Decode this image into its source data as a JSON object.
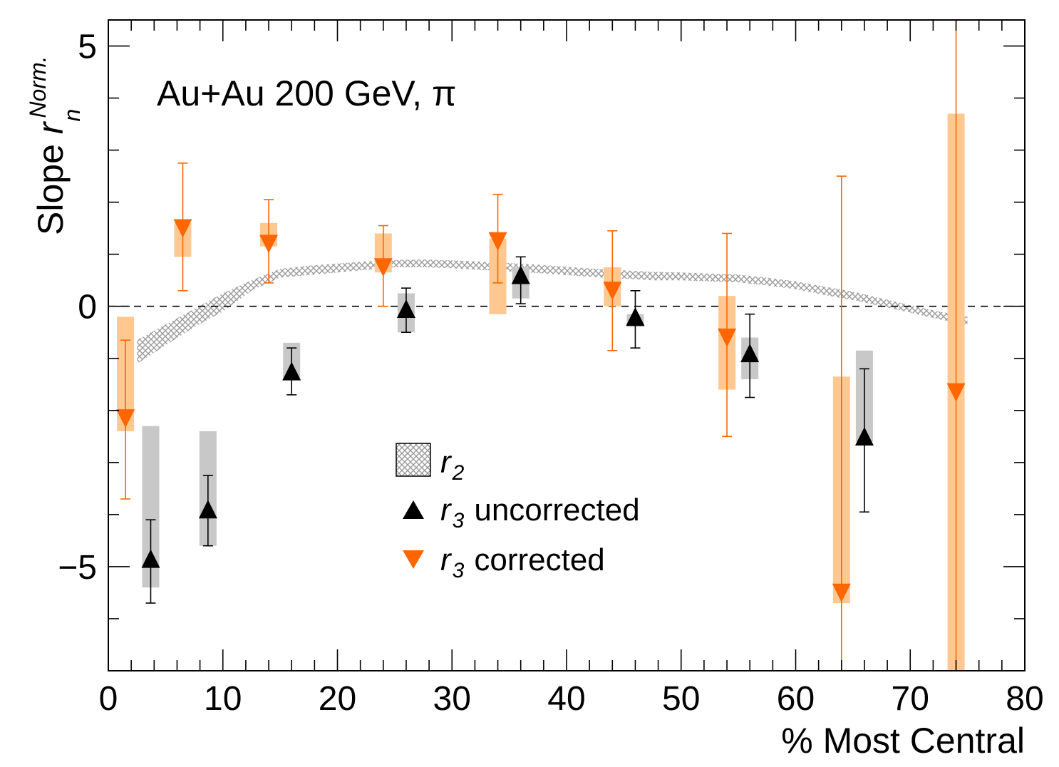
{
  "chart_data": {
    "type": "scatter",
    "annotation": "Au+Au 200 GeV, π",
    "xlabel": "% Most Central",
    "ylabel": {
      "prefix": "Slope ",
      "symbol": "r",
      "superscript": "Norm.",
      "subscript": "n"
    },
    "xlim": [
      0,
      80
    ],
    "ylim": [
      -7,
      5.5
    ],
    "x_ticks": [
      "0",
      "10",
      "20",
      "30",
      "40",
      "50",
      "60",
      "70",
      "80"
    ],
    "y_ticks": [
      {
        "value": 5,
        "label": "5"
      },
      {
        "value": 0,
        "label": "0"
      },
      {
        "value": -5,
        "label": "−5"
      }
    ],
    "reference_line": {
      "y": 0,
      "style": "dashed"
    },
    "legend": {
      "position": "center",
      "entries": [
        {
          "id": "r2",
          "symbol": "r",
          "sub": "2",
          "suffix": ""
        },
        {
          "id": "r3u",
          "symbol": "r",
          "sub": "3",
          "suffix": "uncorrected"
        },
        {
          "id": "r3c",
          "symbol": "r",
          "sub": "3",
          "suffix": "corrected"
        }
      ]
    },
    "colors": {
      "uncorrected": "#000000",
      "uncorrected_sys": "#c8c8c8",
      "corrected": "#ff6600",
      "corrected_sys": "#ffc890",
      "r2_band": "#9a9a9a"
    },
    "band": {
      "name": "r2",
      "x": [
        2.5,
        5,
        7.5,
        10,
        12.5,
        15,
        17.5,
        20,
        22.5,
        25,
        27.5,
        30,
        32.5,
        35,
        37.5,
        40,
        42.5,
        45,
        47.5,
        50,
        52.5,
        55,
        57.5,
        60,
        62.5,
        65,
        67.5,
        70,
        72.5,
        75
      ],
      "low": [
        -1.1,
        -0.75,
        -0.4,
        -0.1,
        0.3,
        0.55,
        0.6,
        0.65,
        0.7,
        0.75,
        0.75,
        0.73,
        0.7,
        0.67,
        0.64,
        0.6,
        0.56,
        0.53,
        0.5,
        0.5,
        0.48,
        0.46,
        0.4,
        0.33,
        0.22,
        0.12,
        0.0,
        -0.12,
        -0.25,
        -0.35
      ],
      "high": [
        -0.65,
        -0.35,
        -0.05,
        0.25,
        0.5,
        0.72,
        0.78,
        0.82,
        0.86,
        0.89,
        0.9,
        0.88,
        0.86,
        0.83,
        0.8,
        0.76,
        0.72,
        0.69,
        0.66,
        0.65,
        0.63,
        0.61,
        0.55,
        0.48,
        0.38,
        0.28,
        0.15,
        0.02,
        -0.1,
        -0.2
      ]
    },
    "series": [
      {
        "name": "r3 uncorrected",
        "marker": "triangle-up",
        "points": [
          {
            "x": 3.7,
            "y": -4.9,
            "stat_lo": -5.7,
            "stat_hi": -4.1,
            "sys_lo": -5.4,
            "sys_hi": -2.3
          },
          {
            "x": 8.7,
            "y": -3.95,
            "stat_lo": -4.6,
            "stat_hi": -3.25,
            "sys_lo": -4.6,
            "sys_hi": -2.4
          },
          {
            "x": 16.0,
            "y": -1.3,
            "stat_lo": -1.7,
            "stat_hi": -0.8,
            "sys_lo": -1.4,
            "sys_hi": -0.7
          },
          {
            "x": 26.0,
            "y": -0.1,
            "stat_lo": -0.5,
            "stat_hi": 0.35,
            "sys_lo": -0.5,
            "sys_hi": 0.25
          },
          {
            "x": 36.0,
            "y": 0.55,
            "stat_lo": 0.05,
            "stat_hi": 0.95,
            "sys_lo": 0.15,
            "sys_hi": 0.75
          },
          {
            "x": 46.0,
            "y": -0.25,
            "stat_lo": -0.8,
            "stat_hi": 0.3,
            "sys_lo": -0.4,
            "sys_hi": -0.15
          },
          {
            "x": 56.0,
            "y": -0.95,
            "stat_lo": -1.75,
            "stat_hi": -0.15,
            "sys_lo": -1.4,
            "sys_hi": -0.6
          },
          {
            "x": 66.0,
            "y": -2.55,
            "stat_lo": -3.95,
            "stat_hi": -1.2,
            "sys_lo": -2.6,
            "sys_hi": -0.85
          }
        ]
      },
      {
        "name": "r3 corrected",
        "marker": "triangle-down",
        "points": [
          {
            "x": 1.5,
            "y": -2.1,
            "stat_lo": -3.7,
            "stat_hi": -0.65,
            "sys_lo": -2.4,
            "sys_hi": -0.2
          },
          {
            "x": 6.5,
            "y": 1.55,
            "stat_lo": 0.3,
            "stat_hi": 2.75,
            "sys_lo": 0.95,
            "sys_hi": 1.6
          },
          {
            "x": 14.0,
            "y": 1.25,
            "stat_lo": 0.45,
            "stat_hi": 2.05,
            "sys_lo": 1.15,
            "sys_hi": 1.6
          },
          {
            "x": 24.0,
            "y": 0.8,
            "stat_lo": 0.0,
            "stat_hi": 1.55,
            "sys_lo": 0.65,
            "sys_hi": 1.4
          },
          {
            "x": 34.0,
            "y": 1.3,
            "stat_lo": 0.45,
            "stat_hi": 2.15,
            "sys_lo": -0.15,
            "sys_hi": 1.3
          },
          {
            "x": 44.0,
            "y": 0.35,
            "stat_lo": -0.85,
            "stat_hi": 1.45,
            "sys_lo": 0.0,
            "sys_hi": 0.75
          },
          {
            "x": 54.0,
            "y": -0.55,
            "stat_lo": -2.5,
            "stat_hi": 1.4,
            "sys_lo": -1.6,
            "sys_hi": 0.2
          },
          {
            "x": 64.0,
            "y": -5.45,
            "stat_lo": -7.0,
            "stat_hi": 2.5,
            "sys_lo": -5.7,
            "sys_hi": -1.35
          },
          {
            "x": 74.0,
            "y": -1.6,
            "stat_lo": -7.0,
            "stat_hi": 5.5,
            "sys_lo": -7.0,
            "sys_hi": 3.7
          }
        ]
      }
    ]
  }
}
